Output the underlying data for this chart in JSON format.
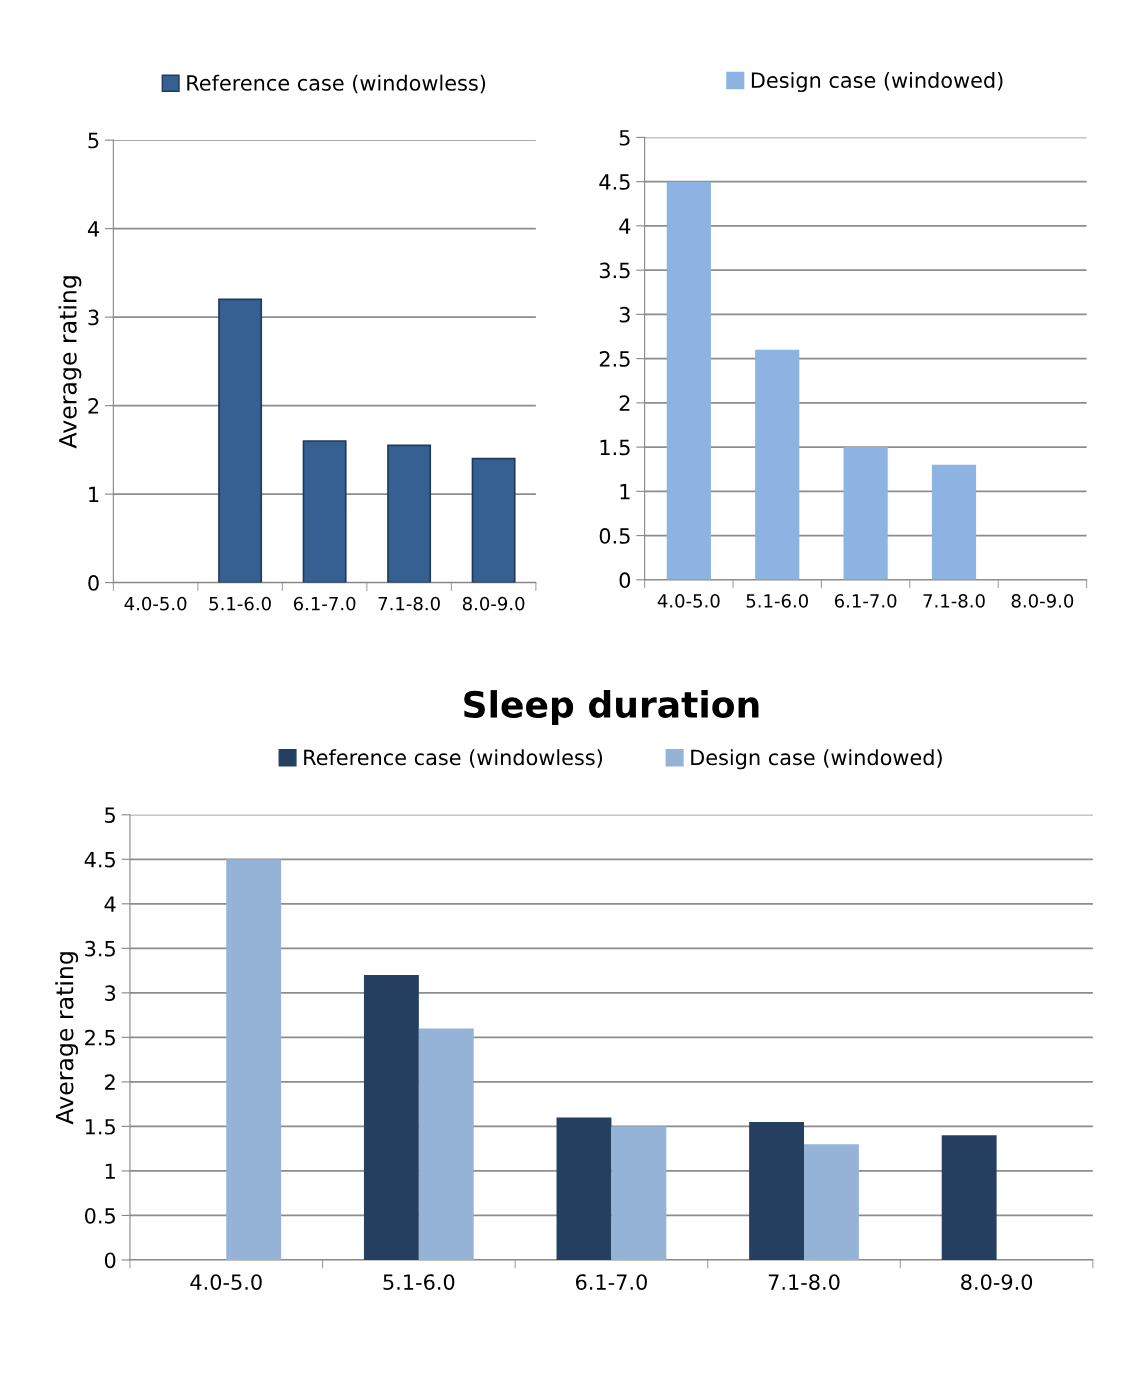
{
  "chart_data": [
    {
      "type": "bar",
      "categories": [
        "4.0-5.0",
        "5.1-6.0",
        "6.1-7.0",
        "7.1-8.0",
        "8.0-9.0"
      ],
      "ylabel": "Average rating",
      "ylim": [
        0,
        5
      ],
      "yticks": [
        0,
        1,
        2,
        3,
        4,
        5
      ],
      "grid": "y",
      "legend": "top",
      "series": [
        {
          "name": "Reference case (windowless)",
          "color": "#366092",
          "values": [
            null,
            3.2,
            1.6,
            1.55,
            1.4
          ]
        }
      ]
    },
    {
      "type": "bar",
      "categories": [
        "4.0-5.0",
        "5.1-6.0",
        "6.1-7.0",
        "7.1-8.0",
        "8.0-9.0"
      ],
      "ylim": [
        0,
        5
      ],
      "yticks": [
        0,
        0.5,
        1,
        1.5,
        2,
        2.5,
        3,
        3.5,
        4,
        4.5,
        5
      ],
      "grid": "y",
      "legend": "top",
      "series": [
        {
          "name": "Design case (windowed)",
          "color": "#8db3e2",
          "values": [
            4.5,
            2.6,
            1.5,
            1.3,
            null
          ]
        }
      ]
    },
    {
      "type": "bar",
      "title": "Sleep duration",
      "categories": [
        "4.0-5.0",
        "5.1-6.0",
        "6.1-7.0",
        "7.1-8.0",
        "8.0-9.0"
      ],
      "ylabel": "Average rating",
      "ylim": [
        0,
        5
      ],
      "yticks": [
        0,
        0.5,
        1,
        1.5,
        2,
        2.5,
        3,
        3.5,
        4,
        4.5,
        5
      ],
      "grid": "y",
      "legend": "top",
      "series": [
        {
          "name": "Reference case (windowless)",
          "color": "#243f60",
          "values": [
            null,
            3.2,
            1.6,
            1.55,
            1.4
          ]
        },
        {
          "name": "Design case (windowed)",
          "color": "#95b3d7",
          "values": [
            4.5,
            2.6,
            1.5,
            1.3,
            null
          ]
        }
      ]
    }
  ]
}
